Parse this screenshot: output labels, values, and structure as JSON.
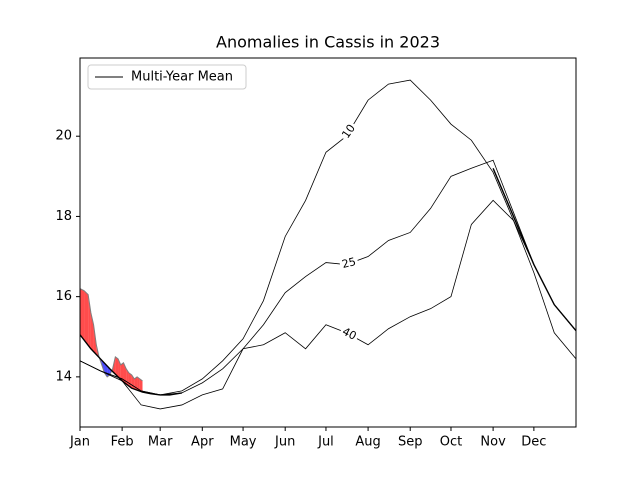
{
  "chart_data": {
    "type": "line",
    "title": "Anomalies in Cassis in 2023",
    "xlim": [
      0,
      365
    ],
    "ylim": [
      12.75,
      21.95
    ],
    "xticks": [
      {
        "value": 0,
        "label": "Jan"
      },
      {
        "value": 31,
        "label": "Feb"
      },
      {
        "value": 59,
        "label": "Mar"
      },
      {
        "value": 90,
        "label": "Apr"
      },
      {
        "value": 120,
        "label": "May"
      },
      {
        "value": 151,
        "label": "Jun"
      },
      {
        "value": 181,
        "label": "Jul"
      },
      {
        "value": 212,
        "label": "Aug"
      },
      {
        "value": 243,
        "label": "Sep"
      },
      {
        "value": 273,
        "label": "Oct"
      },
      {
        "value": 304,
        "label": "Nov"
      },
      {
        "value": 334,
        "label": "Dec"
      }
    ],
    "yticks": [
      14,
      16,
      18,
      20
    ],
    "legend": "upper left",
    "series": [
      {
        "name": "Multi-Year Mean",
        "color": "#000000",
        "x": [
          0,
          8,
          15,
          22,
          31,
          38,
          46,
          52,
          59,
          66,
          75,
          150,
          304,
          319,
          334,
          349,
          365
        ],
        "values": [
          15.05,
          14.7,
          14.45,
          14.2,
          13.9,
          13.72,
          13.62,
          13.58,
          13.55,
          13.55,
          13.6,
          null,
          19.2,
          18.0,
          16.8,
          15.8,
          15.15
        ]
      },
      {
        "color": "#808080",
        "fill_above": "#ff0000",
        "fill_below": "#0000ff",
        "x": [
          0,
          3,
          6,
          8,
          10,
          12,
          14,
          16,
          18,
          20,
          22,
          24,
          26,
          28,
          30,
          32,
          34,
          36,
          38,
          40,
          42,
          44,
          46
        ],
        "values": [
          16.2,
          16.15,
          16.05,
          15.6,
          15.3,
          14.8,
          14.5,
          14.3,
          14.1,
          14.0,
          14.05,
          14.2,
          14.5,
          14.45,
          14.3,
          14.35,
          14.2,
          14.1,
          14.05,
          13.95,
          14.0,
          13.95,
          13.9
        ]
      }
    ],
    "contours": [
      {
        "label": "10",
        "color": "#000000",
        "x": [
          0,
          15,
          31,
          45,
          59,
          75,
          90,
          105,
          120,
          135,
          151,
          166,
          181,
          196,
          212,
          227,
          243,
          258,
          273,
          288,
          304,
          319,
          334,
          349,
          365
        ],
        "values": [
          14.4,
          14.15,
          13.95,
          13.65,
          13.55,
          13.65,
          13.95,
          14.4,
          14.95,
          15.9,
          17.5,
          18.4,
          19.6,
          20.0,
          20.9,
          21.3,
          21.4,
          20.9,
          20.3,
          19.9,
          19.1,
          17.9,
          16.8,
          15.8,
          15.15
        ]
      },
      {
        "label": "25",
        "color": "#000000",
        "x": [
          0,
          15,
          31,
          45,
          59,
          75,
          90,
          105,
          120,
          135,
          151,
          166,
          181,
          196,
          212,
          227,
          243,
          258,
          273,
          288,
          304,
          319,
          334,
          349,
          365
        ],
        "values": [
          14.4,
          14.15,
          13.95,
          13.65,
          13.55,
          13.6,
          13.85,
          14.2,
          14.7,
          15.3,
          16.1,
          16.5,
          16.85,
          16.8,
          17.0,
          17.4,
          17.6,
          18.2,
          19.0,
          19.2,
          19.4,
          18.1,
          16.8,
          15.8,
          15.15
        ]
      },
      {
        "label": "40",
        "color": "#000000",
        "x": [
          0,
          15,
          31,
          45,
          59,
          75,
          90,
          105,
          120,
          135,
          151,
          166,
          181,
          196,
          212,
          227,
          243,
          258,
          273,
          288,
          304,
          319,
          334,
          349,
          365
        ],
        "values": [
          14.4,
          14.15,
          13.9,
          13.3,
          13.2,
          13.3,
          13.55,
          13.7,
          14.7,
          14.8,
          15.1,
          14.7,
          15.3,
          15.1,
          14.8,
          15.2,
          15.5,
          15.7,
          16.0,
          17.8,
          18.4,
          17.9,
          16.6,
          15.1,
          14.45
        ]
      }
    ]
  }
}
